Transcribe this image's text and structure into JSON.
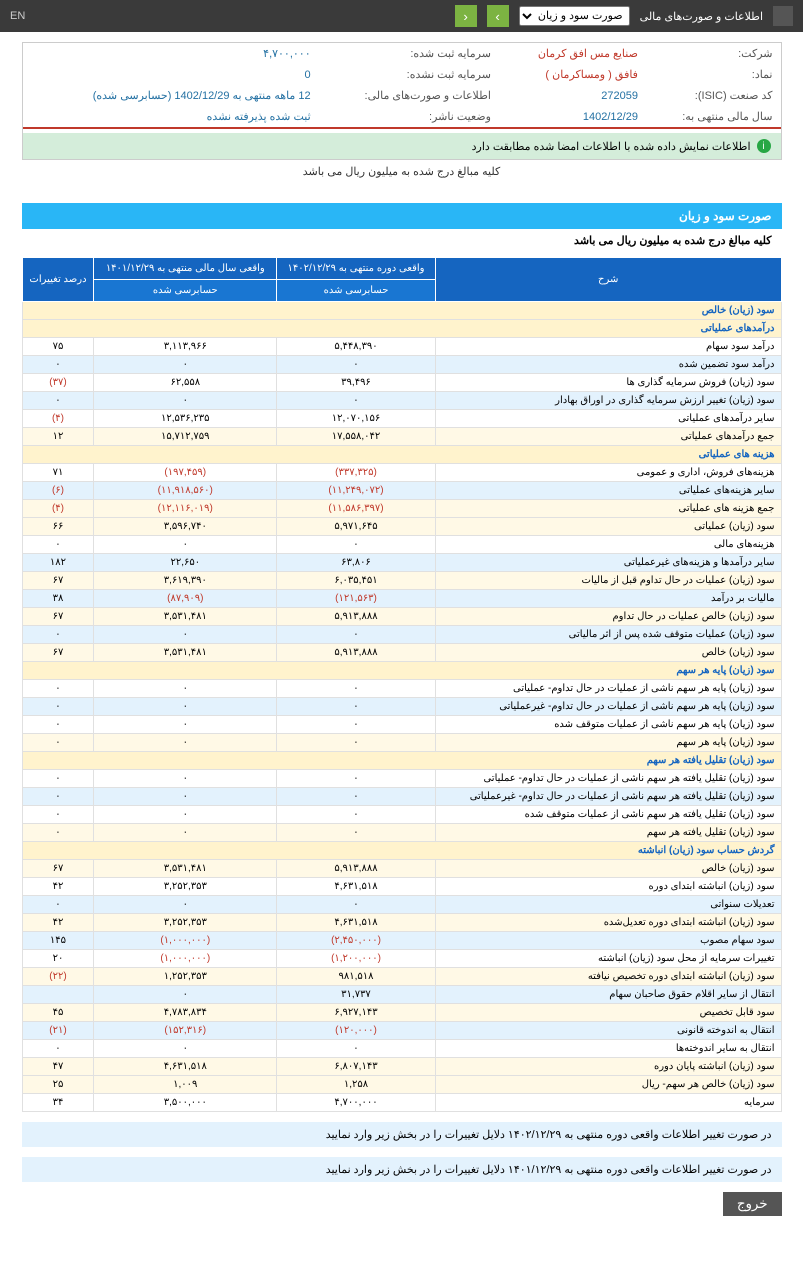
{
  "topbar": {
    "title": "اطلاعات و صورت‌های مالی",
    "dropdown": "صورت سود و زیان",
    "en": "EN"
  },
  "company": {
    "name_label": "شرکت:",
    "name": "صنایع مس افق کرمان",
    "symbol_label": "نماد:",
    "symbol": "فافق ( ومساکرمان )",
    "isic_label": "کد صنعت (ISIC):",
    "isic": "272059",
    "year_label": "سال مالی منتهی به:",
    "year": "1402/12/29",
    "capital_reg_label": "سرمایه ثبت شده:",
    "capital_reg": "۴,۷۰۰,۰۰۰",
    "capital_unreg_label": "سرمایه ثبت نشده:",
    "capital_unreg": "0",
    "statements_label": "اطلاعات و صورت‌های مالی:",
    "statements": "12 ماهه منتهی به 1402/12/29 (حسابرسی شده)",
    "status_label": "وضعیت ناشر:",
    "status": "ثبت شده پذیرفته نشده"
  },
  "alert": "اطلاعات نمایش داده شده با اطلاعات امضا شده مطابقت دارد",
  "note": "کلیه مبالغ درج شده به میلیون ریال می باشد",
  "section": {
    "title": "صورت سود و زیان",
    "subtitle": "کلیه مبالغ درج شده به میلیون ریال می باشد"
  },
  "headers": {
    "desc": "شرح",
    "period1": "واقعی دوره منتهی به ۱۴۰۲/۱۲/۲۹",
    "period2": "واقعی سال مالی منتهی به ۱۴۰۱/۱۲/۲۹",
    "change": "درصد تغییرات",
    "audited": "حسابرسی شده"
  },
  "rows": [
    {
      "cls": "row-header",
      "desc": "سود (زیان) خالص",
      "v1": "",
      "v2": "",
      "chg": ""
    },
    {
      "cls": "row-header",
      "desc": "درآمدهای عملیاتی",
      "v1": "",
      "v2": "",
      "chg": ""
    },
    {
      "cls": "row-white",
      "desc": "درآمد سود سهام",
      "v1": "۵,۴۴۸,۳۹۰",
      "v2": "۳,۱۱۳,۹۶۶",
      "chg": "۷۵"
    },
    {
      "cls": "row-blue",
      "desc": "درآمد سود تضمین شده",
      "v1": "۰",
      "v2": "۰",
      "chg": "۰"
    },
    {
      "cls": "row-white",
      "desc": "سود (زیان) فروش سرمایه گذاری ها",
      "v1": "۳۹,۴۹۶",
      "v2": "۶۲,۵۵۸",
      "chg": "(۳۷)",
      "neg": true
    },
    {
      "cls": "row-blue",
      "desc": "سود (زیان) تغییر ارزش سرمایه گذاری در اوراق بهادار",
      "v1": "۰",
      "v2": "۰",
      "chg": "۰"
    },
    {
      "cls": "row-white",
      "desc": "سایر درآمدهای عملیاتی",
      "v1": "۱۲,۰۷۰,۱۵۶",
      "v2": "۱۲,۵۳۶,۲۳۵",
      "chg": "(۴)",
      "neg": true
    },
    {
      "cls": "row-yellow",
      "desc": "جمع درآمدهای عملیاتی",
      "v1": "۱۷,۵۵۸,۰۴۲",
      "v2": "۱۵,۷۱۲,۷۵۹",
      "chg": "۱۲"
    },
    {
      "cls": "row-header",
      "desc": "هزینه های عملیاتی",
      "v1": "",
      "v2": "",
      "chg": ""
    },
    {
      "cls": "row-white",
      "desc": "هزینه‌های فروش، اداری و عمومی",
      "v1": "(۳۳۷,۳۲۵)",
      "v2": "(۱۹۷,۴۵۹)",
      "chg": "۷۱",
      "negv": true
    },
    {
      "cls": "row-blue",
      "desc": "سایر هزینه‌های عملیاتی",
      "v1": "(۱۱,۲۴۹,۰۷۲)",
      "v2": "(۱۱,۹۱۸,۵۶۰)",
      "chg": "(۶)",
      "neg": true,
      "negv": true
    },
    {
      "cls": "row-yellow",
      "desc": "جمع هزینه های عملیاتی",
      "v1": "(۱۱,۵۸۶,۳۹۷)",
      "v2": "(۱۲,۱۱۶,۰۱۹)",
      "chg": "(۴)",
      "neg": true,
      "negv": true
    },
    {
      "cls": "row-yellow",
      "desc": "سود (زیان) عملیاتی",
      "v1": "۵,۹۷۱,۶۴۵",
      "v2": "۳,۵۹۶,۷۴۰",
      "chg": "۶۶"
    },
    {
      "cls": "row-white",
      "desc": "هزینه‌های مالی",
      "v1": "۰",
      "v2": "۰",
      "chg": "۰"
    },
    {
      "cls": "row-blue",
      "desc": "سایر درآمدها و هزینه‌های غیرعملیاتی",
      "v1": "۶۳,۸۰۶",
      "v2": "۲۲,۶۵۰",
      "chg": "۱۸۲"
    },
    {
      "cls": "row-yellow",
      "desc": "سود (زیان) عملیات در حال تداوم قبل از مالیات",
      "v1": "۶,۰۳۵,۴۵۱",
      "v2": "۳,۶۱۹,۳۹۰",
      "chg": "۶۷"
    },
    {
      "cls": "row-blue",
      "desc": "مالیات بر درآمد",
      "v1": "(۱۲۱,۵۶۳)",
      "v2": "(۸۷,۹۰۹)",
      "chg": "۳۸",
      "negv": true
    },
    {
      "cls": "row-yellow",
      "desc": "سود (زیان) خالص عملیات در حال تداوم",
      "v1": "۵,۹۱۳,۸۸۸",
      "v2": "۳,۵۳۱,۴۸۱",
      "chg": "۶۷"
    },
    {
      "cls": "row-blue",
      "desc": "سود (زیان) عملیات متوقف شده پس از اثر مالیاتی",
      "v1": "۰",
      "v2": "۰",
      "chg": "۰"
    },
    {
      "cls": "row-yellow",
      "desc": "سود (زیان) خالص",
      "v1": "۵,۹۱۳,۸۸۸",
      "v2": "۳,۵۳۱,۴۸۱",
      "chg": "۶۷"
    },
    {
      "cls": "row-header",
      "desc": "سود (زیان) پایه هر سهم",
      "v1": "",
      "v2": "",
      "chg": ""
    },
    {
      "cls": "row-white",
      "desc": "سود (زیان) پایه هر سهم ناشی از عملیات در حال تداوم- عملیاتی",
      "v1": "۰",
      "v2": "۰",
      "chg": "۰"
    },
    {
      "cls": "row-blue",
      "desc": "سود (زیان) پایه هر سهم ناشی از عملیات در حال تداوم- غیرعملیاتی",
      "v1": "۰",
      "v2": "۰",
      "chg": "۰"
    },
    {
      "cls": "row-white",
      "desc": "سود (زیان) پایه هر سهم ناشی از عملیات متوقف شده",
      "v1": "۰",
      "v2": "۰",
      "chg": "۰"
    },
    {
      "cls": "row-yellow",
      "desc": "سود (زیان) پایه هر سهم",
      "v1": "۰",
      "v2": "۰",
      "chg": "۰"
    },
    {
      "cls": "row-header",
      "desc": "سود (زیان) تقلیل یافته هر سهم",
      "v1": "",
      "v2": "",
      "chg": ""
    },
    {
      "cls": "row-white",
      "desc": "سود (زیان) تقلیل یافته هر سهم ناشی از عملیات در حال تداوم- عملیاتی",
      "v1": "۰",
      "v2": "۰",
      "chg": "۰"
    },
    {
      "cls": "row-blue",
      "desc": "سود (زیان) تقلیل یافته هر سهم ناشی از عملیات در حال تداوم- غیرعملیاتی",
      "v1": "۰",
      "v2": "۰",
      "chg": "۰"
    },
    {
      "cls": "row-white",
      "desc": "سود (زیان) تقلیل یافته هر سهم ناشی از عملیات متوقف شده",
      "v1": "۰",
      "v2": "۰",
      "chg": "۰"
    },
    {
      "cls": "row-yellow",
      "desc": "سود (زیان) تقلیل یافته هر سهم",
      "v1": "۰",
      "v2": "۰",
      "chg": "۰"
    },
    {
      "cls": "row-header",
      "desc": "گردش حساب سود (زیان) انباشته",
      "v1": "",
      "v2": "",
      "chg": ""
    },
    {
      "cls": "row-yellow",
      "desc": "سود (زیان) خالص",
      "v1": "۵,۹۱۳,۸۸۸",
      "v2": "۳,۵۳۱,۴۸۱",
      "chg": "۶۷"
    },
    {
      "cls": "row-white",
      "desc": "سود (زیان) انباشته ابتدای دوره",
      "v1": "۴,۶۳۱,۵۱۸",
      "v2": "۳,۲۵۲,۳۵۳",
      "chg": "۴۲"
    },
    {
      "cls": "row-blue",
      "desc": "تعدیلات سنواتی",
      "v1": "۰",
      "v2": "۰",
      "chg": "۰"
    },
    {
      "cls": "row-yellow",
      "desc": "سود (زیان) انباشته ابتدای دوره تعدیل‌شده",
      "v1": "۴,۶۳۱,۵۱۸",
      "v2": "۳,۲۵۲,۳۵۳",
      "chg": "۴۲"
    },
    {
      "cls": "row-blue",
      "desc": "سود سهام مصوب",
      "v1": "(۲,۴۵۰,۰۰۰)",
      "v2": "(۱,۰۰۰,۰۰۰)",
      "chg": "۱۴۵",
      "negv": true
    },
    {
      "cls": "row-white",
      "desc": "تغییرات سرمایه از محل سود (زیان) انباشته",
      "v1": "(۱,۲۰۰,۰۰۰)",
      "v2": "(۱,۰۰۰,۰۰۰)",
      "chg": "۲۰",
      "negv": true
    },
    {
      "cls": "row-yellow",
      "desc": "سود (زیان) انباشته ابتدای دوره تخصیص نیافته",
      "v1": "۹۸۱,۵۱۸",
      "v2": "۱,۲۵۲,۳۵۳",
      "chg": "(۲۲)",
      "neg": true
    },
    {
      "cls": "row-blue",
      "desc": "انتقال از سایر اقلام حقوق صاحبان سهام",
      "v1": "۳۱,۷۳۷",
      "v2": "۰",
      "chg": ""
    },
    {
      "cls": "row-yellow",
      "desc": "سود قابل تخصیص",
      "v1": "۶,۹۲۷,۱۴۳",
      "v2": "۴,۷۸۳,۸۳۴",
      "chg": "۴۵"
    },
    {
      "cls": "row-blue",
      "desc": "انتقال به اندوخته قانونی",
      "v1": "(۱۲۰,۰۰۰)",
      "v2": "(۱۵۲,۳۱۶)",
      "chg": "(۲۱)",
      "neg": true,
      "negv": true
    },
    {
      "cls": "row-white",
      "desc": "انتقال به سایر اندوخته‌ها",
      "v1": "۰",
      "v2": "۰",
      "chg": "۰"
    },
    {
      "cls": "row-yellow",
      "desc": "سود (زیان) انباشته پایان دوره",
      "v1": "۶,۸۰۷,۱۴۳",
      "v2": "۴,۶۳۱,۵۱۸",
      "chg": "۴۷"
    },
    {
      "cls": "row-yellow",
      "desc": "سود (زیان) خالص هر سهم- ریال",
      "v1": "۱,۲۵۸",
      "v2": "۱,۰۰۹",
      "chg": "۲۵"
    },
    {
      "cls": "row-white",
      "desc": "سرمایه",
      "v1": "۴,۷۰۰,۰۰۰",
      "v2": "۳,۵۰۰,۰۰۰",
      "chg": "۳۴"
    }
  ],
  "footer": {
    "note1": "در صورت تغییر اطلاعات واقعی دوره منتهی به ۱۴۰۲/۱۲/۲۹ دلایل تغییرات را در بخش زیر وارد نمایید",
    "note2": "در صورت تغییر اطلاعات واقعی دوره منتهی به ۱۴۰۱/۱۲/۲۹ دلایل تغییرات را در بخش زیر وارد نمایید",
    "exit": "خروج"
  }
}
